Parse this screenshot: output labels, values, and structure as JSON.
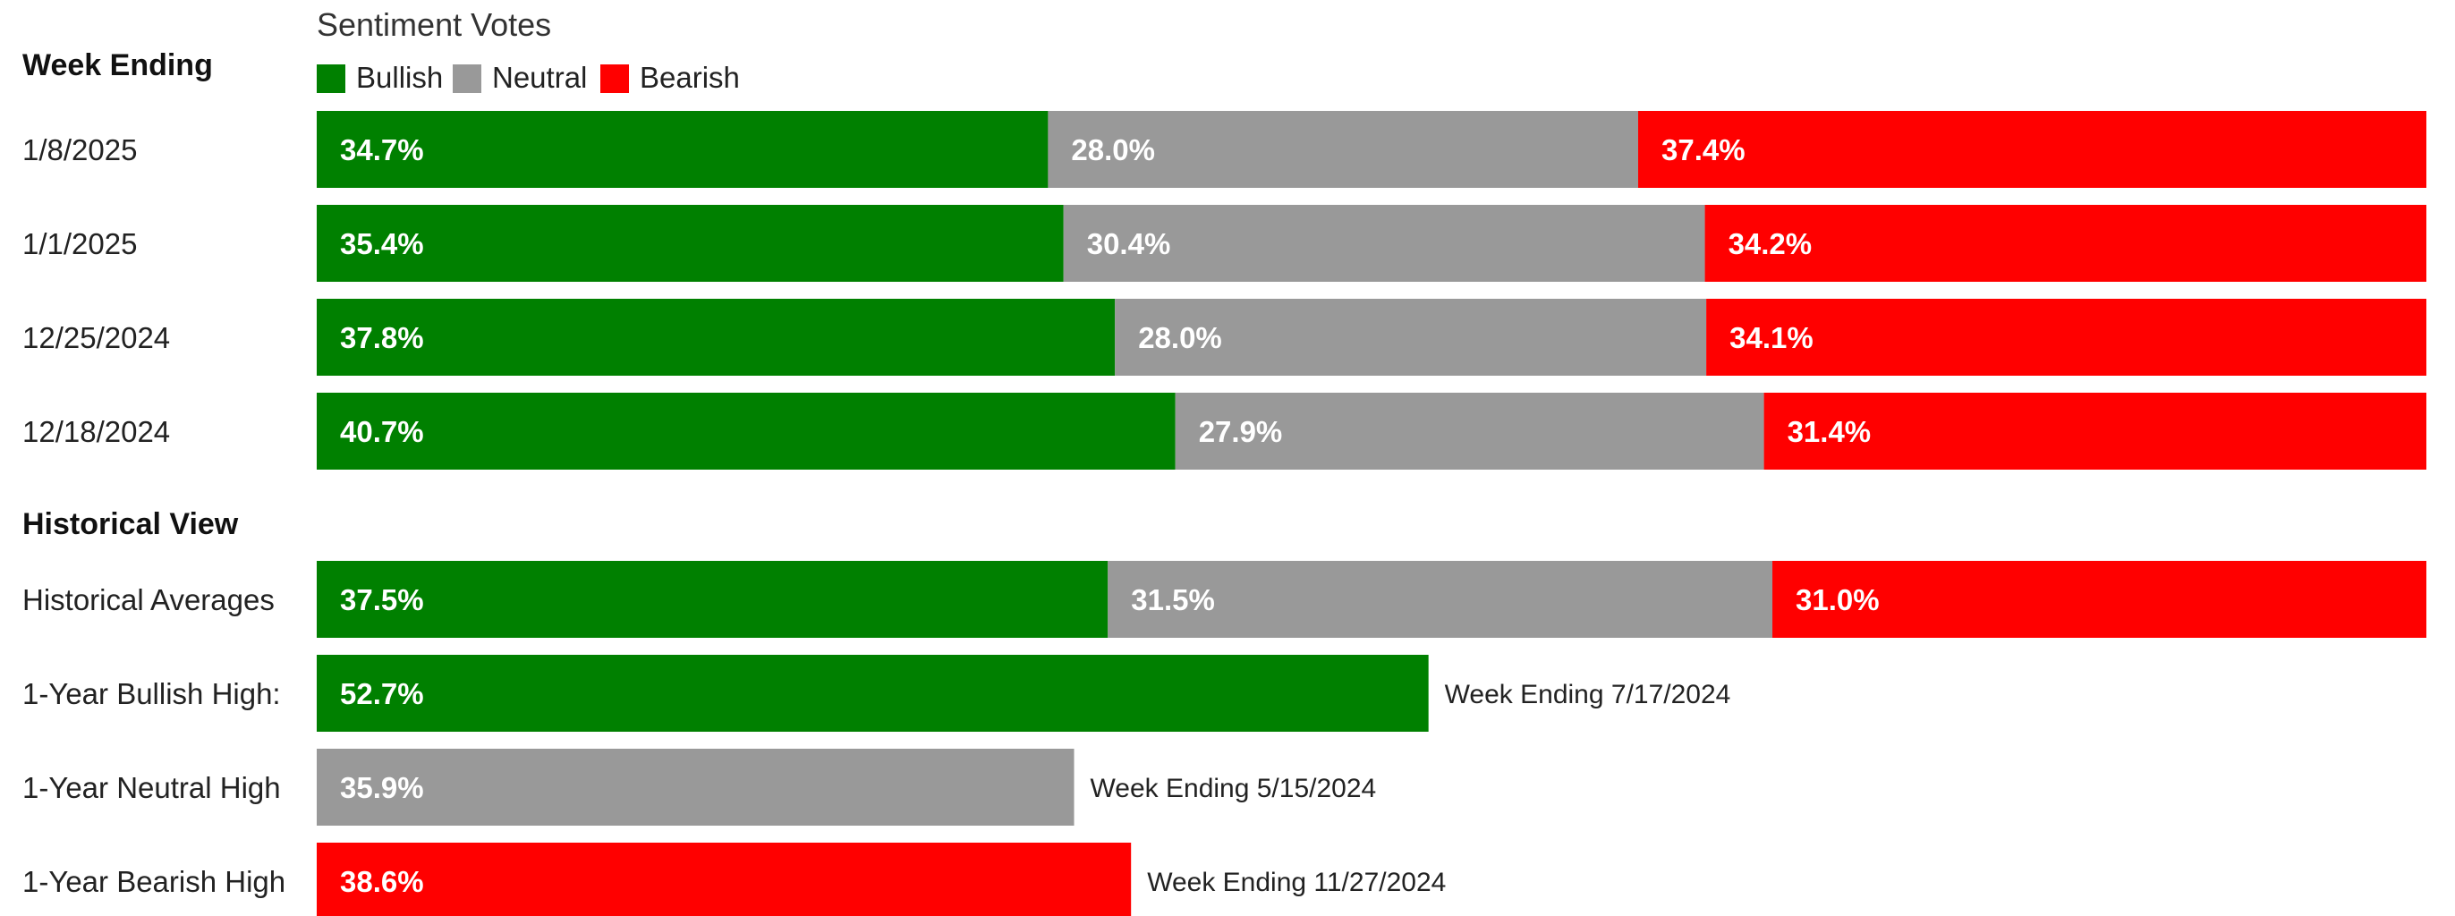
{
  "chart_data": {
    "type": "bar",
    "subtype": "stacked-horizontal-100-percent",
    "title": "Sentiment Votes",
    "row_header": "Week Ending",
    "legend": [
      {
        "key": "bullish",
        "label": "Bullish",
        "color": "#008000"
      },
      {
        "key": "neutral",
        "label": "Neutral",
        "color": "#999999"
      },
      {
        "key": "bearish",
        "label": "Bearish",
        "color": "#ff0000"
      }
    ],
    "legend_position": "top-left",
    "weekly": [
      {
        "label": "1/8/2025",
        "bullish": 34.7,
        "neutral": 28.0,
        "bearish": 37.4,
        "bullish_text": "34.7%",
        "neutral_text": "28.0%",
        "bearish_text": "37.4%"
      },
      {
        "label": "1/1/2025",
        "bullish": 35.4,
        "neutral": 30.4,
        "bearish": 34.2,
        "bullish_text": "35.4%",
        "neutral_text": "30.4%",
        "bearish_text": "34.2%"
      },
      {
        "label": "12/25/2024",
        "bullish": 37.8,
        "neutral": 28.0,
        "bearish": 34.1,
        "bullish_text": "37.8%",
        "neutral_text": "28.0%",
        "bearish_text": "34.1%"
      },
      {
        "label": "12/18/2024",
        "bullish": 40.7,
        "neutral": 27.9,
        "bearish": 31.4,
        "bullish_text": "40.7%",
        "neutral_text": "27.9%",
        "bearish_text": "31.4%"
      }
    ],
    "historical_header": "Historical View",
    "historical_averages": {
      "label": "Historical Averages",
      "bullish": 37.5,
      "neutral": 31.5,
      "bearish": 31.0,
      "bullish_text": "37.5%",
      "neutral_text": "31.5%",
      "bearish_text": "31.0%"
    },
    "highs": [
      {
        "label": "1-Year Bullish High:",
        "key": "bullish",
        "value": 52.7,
        "value_text": "52.7%",
        "note": "Week Ending 7/17/2024"
      },
      {
        "label": "1-Year Neutral High",
        "key": "neutral",
        "value": 35.9,
        "value_text": "35.9%",
        "note": "Week Ending 5/15/2024"
      },
      {
        "label": "1-Year Bearish High",
        "key": "bearish",
        "value": 38.6,
        "value_text": "38.6%",
        "note": "Week Ending 11/27/2024"
      }
    ],
    "xlim": [
      0,
      100
    ],
    "grid": false
  }
}
